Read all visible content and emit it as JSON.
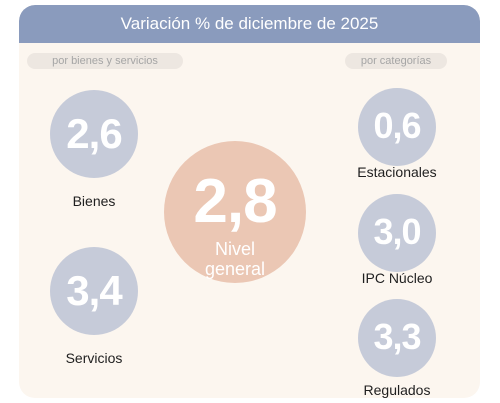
{
  "header": {
    "title": "Variación % de diciembre de 2025"
  },
  "pills": {
    "left": "por bienes y servicios",
    "right": "por categorías"
  },
  "items": {
    "bienes": {
      "value": "2,6",
      "label": "Bienes"
    },
    "servicios": {
      "value": "3,4",
      "label": "Servicios"
    },
    "general": {
      "value": "2,8",
      "label_line1": "Nivel",
      "label_line2": "general"
    },
    "estacionales": {
      "value": "0,6",
      "label": "Estacionales"
    },
    "nucleo": {
      "value": "3,0",
      "label": "IPC Núcleo"
    },
    "regulados": {
      "value": "3,3",
      "label": "Regulados"
    }
  },
  "colors": {
    "header_bg": "#8a9bbd",
    "panel_bg": "#fcf6ef",
    "circle_gray": "#c6cbd9",
    "circle_peach": "#ebc7b4"
  }
}
